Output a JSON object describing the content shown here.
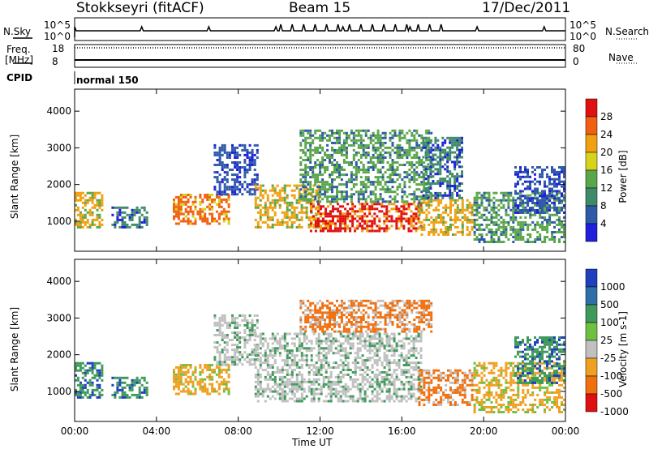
{
  "header": {
    "title_left": "Stokkseyri (fitACF)",
    "title_center": "Beam 15",
    "title_right": "17/Dec/2011"
  },
  "strips": {
    "nsky_label": "N.Sky",
    "nsky_ticks": [
      "10^5",
      "10^0"
    ],
    "nsearch_label": "N.Search",
    "nsearch_ticks": [
      "10^5",
      "10^0"
    ],
    "freq_label": "Freq.",
    "freq_unit": "[MHz]",
    "freq_ticks": [
      "18",
      "8"
    ],
    "nave_label": "Nave",
    "nave_ticks": [
      "80",
      "0"
    ],
    "cpid_label": "CPID",
    "cpid_value": "normal 150"
  },
  "colors": {
    "power_scale": [
      "#1f1fdc",
      "#2f5aa8",
      "#3f8a6a",
      "#5aa64a",
      "#d7d21a",
      "#f0a010",
      "#f06010",
      "#e01010"
    ],
    "velocity_scale": [
      "#1f3fbf",
      "#2f6fa8",
      "#3f9a5a",
      "#6fc040",
      "#c0c0c0",
      "#f0a020",
      "#f07010",
      "#e01010"
    ]
  },
  "chart_data": [
    {
      "type": "heatmap",
      "name": "power-panel",
      "ylabel": "Slant Range [km]",
      "xlabel": "",
      "x_ticks": [
        "00:00",
        "04:00",
        "08:00",
        "12:00",
        "16:00",
        "20:00",
        "00:00"
      ],
      "x_range_hours": [
        0,
        24
      ],
      "y_ticks": [
        1000,
        2000,
        3000,
        4000
      ],
      "y_range_km": [
        180,
        4600
      ],
      "colorbar": {
        "label": "Power [dB]",
        "ticks": [
          4,
          8,
          12,
          16,
          20,
          24,
          28
        ]
      },
      "regions": [
        {
          "t0": 0.0,
          "t1": 1.4,
          "r0": 800,
          "r1": 1800,
          "level": 5
        },
        {
          "t0": 1.8,
          "t1": 3.6,
          "r0": 800,
          "r1": 1400,
          "level": 2
        },
        {
          "t0": 4.8,
          "t1": 7.6,
          "r0": 900,
          "r1": 1750,
          "level": 6
        },
        {
          "t0": 6.8,
          "t1": 9.0,
          "r0": 1700,
          "r1": 3100,
          "level": 1
        },
        {
          "t0": 8.8,
          "t1": 12.0,
          "r0": 800,
          "r1": 2000,
          "level": 5
        },
        {
          "t0": 11.5,
          "t1": 17.0,
          "r0": 700,
          "r1": 1500,
          "level": 7
        },
        {
          "t0": 11.0,
          "t1": 17.5,
          "r0": 1500,
          "r1": 3500,
          "level": 3
        },
        {
          "t0": 16.8,
          "t1": 19.5,
          "r0": 600,
          "r1": 1600,
          "level": 5
        },
        {
          "t0": 17.0,
          "t1": 19.0,
          "r0": 1600,
          "r1": 3300,
          "level": 2
        },
        {
          "t0": 19.5,
          "t1": 24.0,
          "r0": 400,
          "r1": 1800,
          "level": 3
        },
        {
          "t0": 21.5,
          "t1": 24.0,
          "r0": 1200,
          "r1": 2500,
          "level": 1
        }
      ]
    },
    {
      "type": "heatmap",
      "name": "velocity-panel",
      "ylabel": "Slant Range [km]",
      "xlabel": "Time UT",
      "x_ticks": [
        "00:00",
        "04:00",
        "08:00",
        "12:00",
        "16:00",
        "20:00",
        "00:00"
      ],
      "x_range_hours": [
        0,
        24
      ],
      "y_ticks": [
        1000,
        2000,
        3000,
        4000
      ],
      "y_range_km": [
        180,
        4600
      ],
      "colorbar": {
        "label": "Velocity [m s-1]",
        "ticks": [
          1000,
          500,
          100,
          25,
          -25,
          -100,
          -500,
          -1000
        ]
      },
      "regions": [
        {
          "t0": 0.0,
          "t1": 1.4,
          "r0": 800,
          "r1": 1800,
          "level": 2
        },
        {
          "t0": 1.8,
          "t1": 3.6,
          "r0": 800,
          "r1": 1400,
          "level": 2
        },
        {
          "t0": 4.8,
          "t1": 7.6,
          "r0": 900,
          "r1": 1750,
          "level": 5
        },
        {
          "t0": 6.8,
          "t1": 9.0,
          "r0": 1700,
          "r1": 3100,
          "level": 4
        },
        {
          "t0": 8.8,
          "t1": 17.0,
          "r0": 700,
          "r1": 2600,
          "level": 4
        },
        {
          "t0": 11.0,
          "t1": 17.5,
          "r0": 2600,
          "r1": 3500,
          "level": 6
        },
        {
          "t0": 16.8,
          "t1": 19.5,
          "r0": 600,
          "r1": 1600,
          "level": 6
        },
        {
          "t0": 19.5,
          "t1": 24.0,
          "r0": 400,
          "r1": 1800,
          "level": 5
        },
        {
          "t0": 21.5,
          "t1": 24.0,
          "r0": 1200,
          "r1": 2500,
          "level": 2
        }
      ]
    }
  ]
}
